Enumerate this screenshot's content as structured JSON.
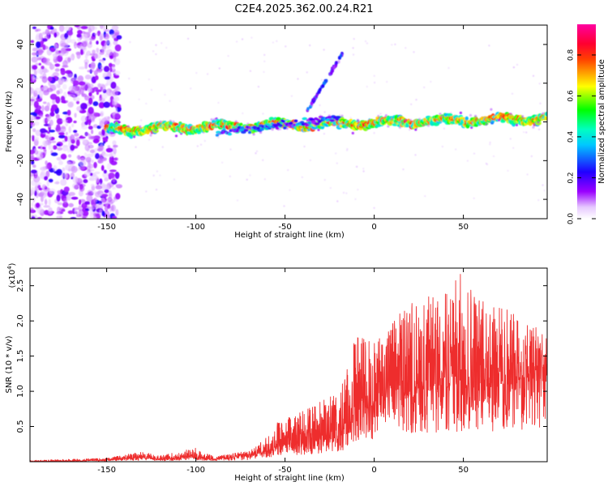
{
  "figure": {
    "title": "C2E4.2025.362.00.24.R21"
  },
  "chart_data": [
    {
      "type": "heatmap",
      "xlabel": "Height of straight line (km)",
      "ylabel": "Frequency (Hz)",
      "xlim": [
        -193,
        97
      ],
      "ylim": [
        -50,
        50
      ],
      "xticks": [
        -150,
        -100,
        -50,
        0,
        50
      ],
      "xtick_labels": [
        "-150",
        "-100",
        "-50",
        "0",
        "50"
      ],
      "yticks": [
        -40,
        -20,
        0,
        20,
        40
      ],
      "ytick_labels": [
        "-40",
        "-20",
        "0",
        "20",
        "40"
      ],
      "colorbar": {
        "label": "Normalized spectral amplitude",
        "range": [
          0.0,
          0.95
        ],
        "ticks": [
          0.0,
          0.2,
          0.4,
          0.6,
          0.8
        ],
        "tick_labels": [
          "0.0",
          "0.2",
          "0.4",
          "0.6",
          "0.8"
        ],
        "colormap": [
          "#ffffff",
          "#9a00ff",
          "#2000ff",
          "#00ffff",
          "#00ff00",
          "#ffff00",
          "#ff0000",
          "#ff00a0"
        ]
      },
      "features": [
        {
          "name": "noise region",
          "x_range": [
            -193,
            -143
          ],
          "y_range": [
            -50,
            50
          ],
          "level": 0.1
        },
        {
          "name": "main band",
          "x_range": [
            -150,
            97
          ],
          "y_center": [
            -4,
            2
          ],
          "level": 0.5
        },
        {
          "name": "secondary band",
          "x_range": [
            -88,
            -20
          ],
          "y_center": [
            -6,
            2
          ],
          "level": 0.3
        },
        {
          "name": "rising streak",
          "x_range": [
            -38,
            -18
          ],
          "y_range": [
            5,
            35
          ],
          "level": 0.25
        }
      ]
    },
    {
      "type": "line",
      "xlabel": "Height of straight line (km)",
      "ylabel": "SNR (10 * v/v)",
      "y_multiplier": "(x10",
      "y_multiplier_exp": "4",
      "y_multiplier_close": ")",
      "xlim": [
        -193,
        97
      ],
      "ylim": [
        0.0,
        2.75
      ],
      "xticks": [
        -150,
        -100,
        -50,
        0,
        50
      ],
      "xtick_labels": [
        "-150",
        "-100",
        "-50",
        "0",
        "50"
      ],
      "yticks": [
        0.5,
        1.0,
        1.5,
        2.0,
        2.5
      ],
      "ytick_labels": [
        "0.5",
        "1.0",
        "1.5",
        "2.0",
        "2.5"
      ],
      "color": "#ee2d2d",
      "series": [
        {
          "name": "SNR envelope",
          "x": [
            -193,
            -150,
            -140,
            -130,
            -120,
            -110,
            -100,
            -90,
            -80,
            -70,
            -60,
            -55,
            -50,
            -40,
            -30,
            -20,
            -15,
            -10,
            0,
            10,
            20,
            30,
            40,
            50,
            60,
            70,
            80,
            90,
            97
          ],
          "baseline": [
            0.0,
            0.02,
            0.04,
            0.05,
            0.03,
            0.05,
            0.06,
            0.03,
            0.05,
            0.07,
            0.15,
            0.2,
            0.25,
            0.25,
            0.3,
            0.35,
            0.4,
            0.7,
            0.8,
            0.9,
            0.95,
            1.0,
            1.05,
            1.05,
            1.05,
            1.1,
            1.1,
            1.15,
            1.15
          ],
          "peak": [
            0.02,
            0.05,
            0.1,
            0.14,
            0.09,
            0.14,
            0.2,
            0.07,
            0.12,
            0.15,
            0.35,
            0.55,
            0.6,
            0.75,
            0.85,
            1.0,
            1.35,
            1.8,
            1.75,
            2.0,
            2.3,
            2.35,
            2.4,
            2.75,
            2.3,
            2.25,
            2.1,
            2.0,
            1.8
          ]
        }
      ]
    }
  ]
}
